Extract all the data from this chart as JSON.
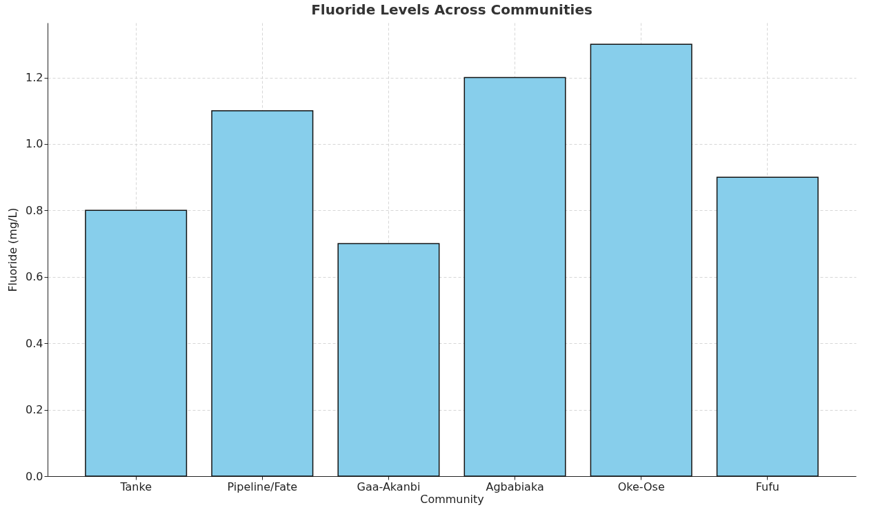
{
  "chart_data": {
    "type": "bar",
    "title": "Fluoride Levels Across Communities",
    "xlabel": "Community",
    "ylabel": "Fluoride (mg/L)",
    "categories": [
      "Tanke",
      "Pipeline/Fate",
      "Gaa-Akanbi",
      "Agbabiaka",
      "Oke-Ose",
      "Fufu"
    ],
    "values": [
      0.8,
      1.1,
      0.7,
      1.2,
      1.3,
      0.9
    ],
    "color": "#87ceeb",
    "ylim": [
      0,
      1.365
    ],
    "yticks": [
      {
        "value": 0,
        "label": "0.0"
      },
      {
        "value": 0.2,
        "label": "0.2"
      },
      {
        "value": 0.4,
        "label": "0.4"
      },
      {
        "value": 0.6,
        "label": "0.6"
      },
      {
        "value": 0.8,
        "label": "0.8"
      },
      {
        "value": 1.0,
        "label": "1.0"
      },
      {
        "value": 1.2,
        "label": "1.2"
      }
    ],
    "grid": true
  }
}
